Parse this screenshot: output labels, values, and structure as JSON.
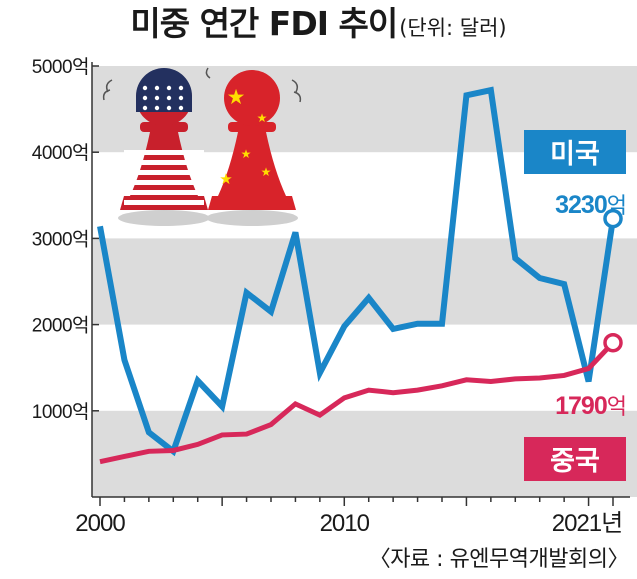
{
  "title": "미중 연간 FDI 추이",
  "unit": "(단위: 달러)",
  "source": "〈자료 : 유엔무역개발회의〉",
  "colors": {
    "us": "#1a86c8",
    "cn": "#d7285a",
    "band": "#dcdcdc"
  },
  "illustration": {
    "left_piece": "us-flag-pawn",
    "right_piece": "china-flag-pawn"
  },
  "chart_data": {
    "type": "line",
    "title": "미중 연간 FDI 추이",
    "unit": "(단위: 달러)",
    "xlim": [
      2000,
      2021
    ],
    "ylim": [
      0,
      5000
    ],
    "yticks": [
      1000,
      2000,
      3000,
      4000,
      5000
    ],
    "ytick_labels": [
      "1000억",
      "2000억",
      "3000억",
      "4000억",
      "5000억"
    ],
    "xtick_labels": [
      {
        "x": 2000,
        "label": "2000"
      },
      {
        "x": 2010,
        "label": "2010"
      },
      {
        "x": 2021,
        "label": "2021년"
      }
    ],
    "series": [
      {
        "name": "미국",
        "color": "#1a86c8",
        "x": [
          2000,
          2001,
          2002,
          2003,
          2004,
          2005,
          2006,
          2007,
          2008,
          2009,
          2010,
          2011,
          2012,
          2013,
          2014,
          2015,
          2016,
          2017,
          2018,
          2019,
          2020,
          2021
        ],
        "y": [
          3140,
          1590,
          750,
          530,
          1350,
          1050,
          2370,
          2150,
          3070,
          1440,
          1980,
          2310,
          1950,
          2010,
          2010,
          4660,
          4720,
          2770,
          2540,
          2470,
          1340,
          3230
        ],
        "end_label": "3230억"
      },
      {
        "name": "중국",
        "color": "#d7285a",
        "x": [
          2000,
          2001,
          2002,
          2003,
          2004,
          2005,
          2006,
          2007,
          2008,
          2009,
          2010,
          2011,
          2012,
          2013,
          2014,
          2015,
          2016,
          2017,
          2018,
          2019,
          2020,
          2021
        ],
        "y": [
          410,
          470,
          530,
          540,
          610,
          720,
          730,
          840,
          1080,
          950,
          1150,
          1240,
          1210,
          1240,
          1290,
          1360,
          1340,
          1370,
          1380,
          1410,
          1490,
          1790
        ],
        "end_label": "1790억"
      }
    ]
  }
}
